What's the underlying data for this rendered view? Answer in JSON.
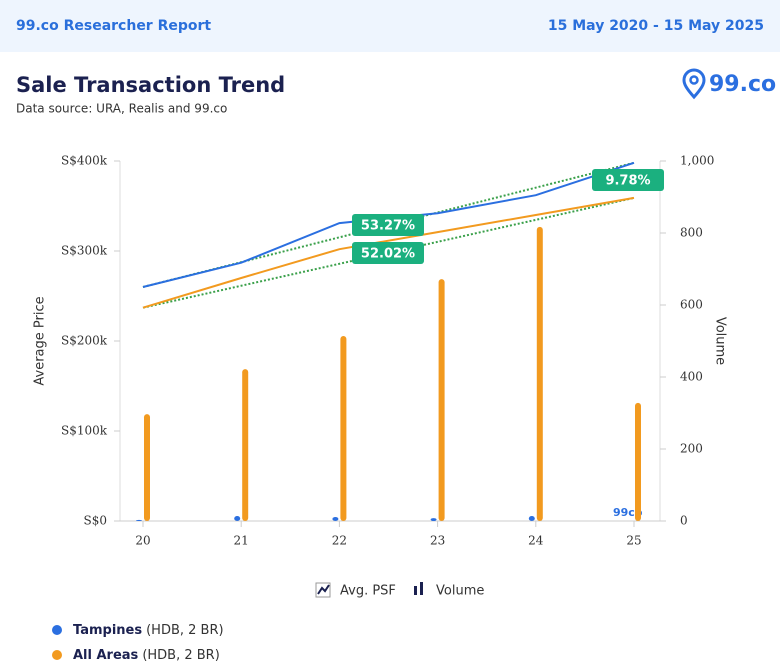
{
  "header": {
    "brand": "99.co Researcher Report",
    "date_range": "15 May 2020 - 15 May 2025"
  },
  "logo": "99.co",
  "chart_data": {
    "type": "line",
    "title": "Sale Transaction Trend",
    "subtitle": "Data source: URA, Realis and 99.co",
    "ylabel": "Average Price",
    "y2label": "Volume",
    "categories": [
      "20",
      "21",
      "22",
      "23",
      "24",
      "25"
    ],
    "ylim": [
      0,
      400000
    ],
    "yticks": [
      {
        "value": 0,
        "label": "S$0"
      },
      {
        "value": 100000,
        "label": "S$100k"
      },
      {
        "value": 200000,
        "label": "S$200k"
      },
      {
        "value": 300000,
        "label": "S$300k"
      },
      {
        "value": 400000,
        "label": "S$400k"
      }
    ],
    "y2lim": [
      0,
      1000
    ],
    "y2ticks": [
      0,
      200,
      400,
      600,
      800,
      {
        "value": 1000,
        "label": "1,000"
      }
    ],
    "series": [
      {
        "name": "Tampines",
        "detail": "(HDB, 2 BR)",
        "color": "#2b6fe0",
        "values": [
          260000,
          287000,
          331000,
          342000,
          362000,
          398000
        ],
        "volume": [
          3,
          14,
          11,
          8,
          14,
          0
        ]
      },
      {
        "name": "All Areas",
        "detail": "(HDB, 2 BR)",
        "color": "#f29a1f",
        "values": [
          237000,
          270000,
          302000,
          321000,
          340000,
          359000
        ],
        "volume": [
          297,
          422,
          514,
          672,
          817,
          328
        ]
      }
    ],
    "trend_color": "#3aa04a",
    "annotations": [
      "53.27%",
      "52.02%",
      "9.78%"
    ],
    "annotation_color": "#1bb07f",
    "legend_types": [
      "Avg. PSF",
      "Volume"
    ],
    "watermark": "99co"
  }
}
